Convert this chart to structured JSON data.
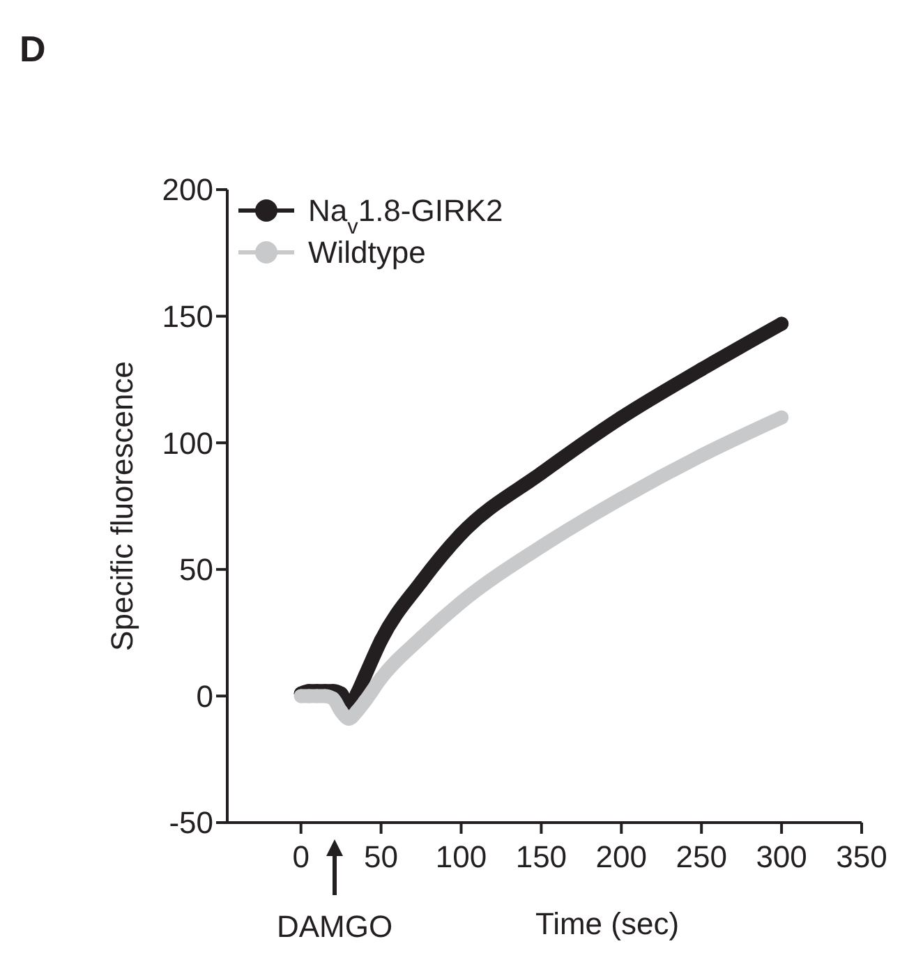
{
  "chart_data": {
    "type": "line",
    "title": "D",
    "xlabel": "Time (sec)",
    "ylabel": "Specific fluorescence",
    "annotations": [
      "DAMGO"
    ],
    "xlim": [
      -46,
      350
    ],
    "xticks": [
      0,
      50,
      100,
      150,
      200,
      250,
      300,
      350
    ],
    "ylim": [
      -50,
      200
    ],
    "yticks": [
      -50,
      0,
      50,
      100,
      150,
      200
    ],
    "legend": "top left",
    "marker": "circle",
    "line_style": "solid",
    "grid": false,
    "series": [
      {
        "name": "Na$_{v}$1.8-GIRK2",
        "color": "#231f20",
        "x": [
          0,
          5,
          10,
          15,
          20,
          25,
          30,
          35,
          40,
          50,
          75,
          100,
          150,
          200,
          250,
          300
        ],
        "values": [
          1,
          2,
          2,
          2,
          2,
          1,
          -5,
          1,
          8,
          22,
          45,
          64,
          88,
          110,
          129,
          147
        ]
      },
      {
        "name": "Wildtype",
        "color": "#c8c9cb",
        "x": [
          0,
          5,
          10,
          15,
          20,
          25,
          30,
          35,
          40,
          50,
          75,
          100,
          150,
          200,
          250,
          300
        ],
        "values": [
          0,
          0,
          0,
          0,
          -1,
          -6,
          -9,
          -6,
          -2,
          7,
          23,
          37,
          59,
          78,
          95,
          110
        ]
      }
    ]
  }
}
